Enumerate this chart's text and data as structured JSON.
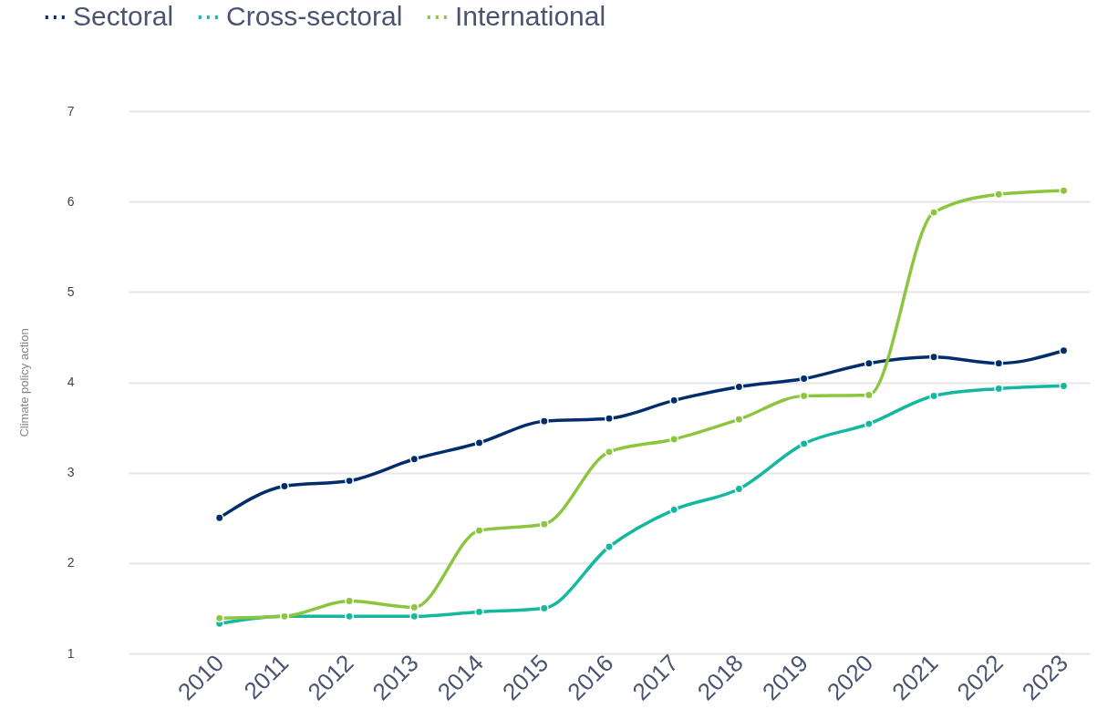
{
  "chart_data": {
    "type": "line",
    "ylabel": "Climate policy action",
    "categories": [
      "2010",
      "2011",
      "2012",
      "2013",
      "2014",
      "2015",
      "2016",
      "2017",
      "2018",
      "2019",
      "2020",
      "2021",
      "2022",
      "2023"
    ],
    "series": [
      {
        "name": "Sectoral",
        "color": "#002d6b",
        "values": [
          2.5,
          2.85,
          2.91,
          3.15,
          3.33,
          3.57,
          3.6,
          3.8,
          3.95,
          4.04,
          4.21,
          4.28,
          4.21,
          4.35
        ]
      },
      {
        "name": "Cross-sectoral",
        "color": "#14b8a0",
        "values": [
          1.33,
          1.41,
          1.41,
          1.41,
          1.46,
          1.5,
          2.18,
          2.59,
          2.82,
          3.32,
          3.54,
          3.85,
          3.93,
          3.96
        ]
      },
      {
        "name": "International",
        "color": "#8cc63f",
        "values": [
          1.39,
          1.41,
          1.58,
          1.51,
          2.36,
          2.43,
          3.23,
          3.37,
          3.59,
          3.85,
          3.86,
          5.88,
          6.08,
          6.12
        ]
      }
    ],
    "ylim": [
      1,
      7
    ],
    "yticks": [
      1,
      2,
      3,
      4,
      5,
      6,
      7
    ],
    "grid": "y",
    "legend": "top left",
    "marker": "circle",
    "line_style": "solid"
  }
}
